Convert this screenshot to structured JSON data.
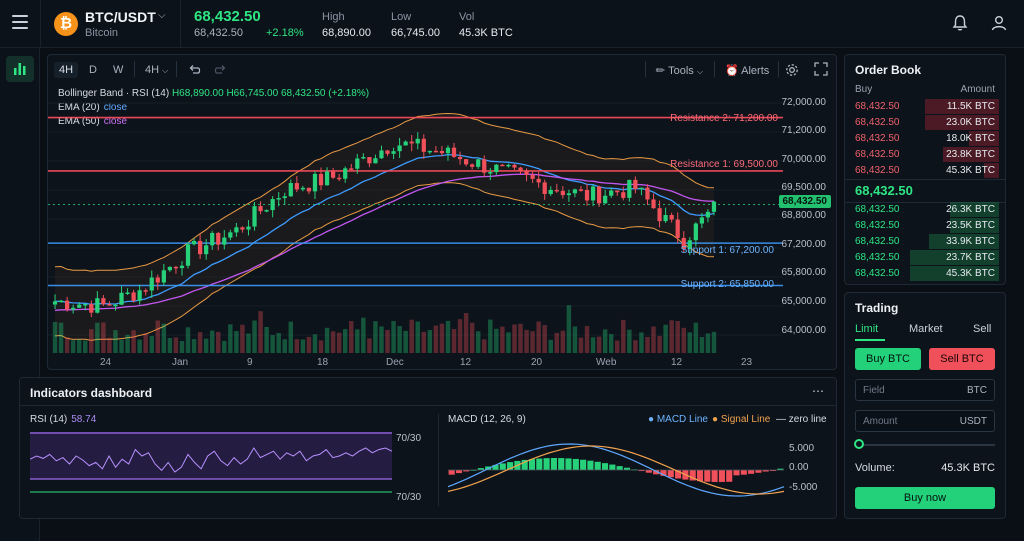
{
  "header": {
    "coin_symbol": "₿",
    "pair": "BTC/USDT",
    "pair_name": "Bitcoin",
    "last_price": "68,432.50",
    "last_price_sub": "68,432.50",
    "change": "+2.18%",
    "stats": [
      {
        "label": "High",
        "value": "68,890.00"
      },
      {
        "label": "Low",
        "value": "66,745.00"
      },
      {
        "label": "Vol",
        "value": "45.3K BTC"
      }
    ],
    "icons": [
      "menu-icon",
      "bell-icon",
      "user-icon"
    ]
  },
  "rail": {
    "icons": [
      "bar-chart-icon"
    ]
  },
  "chart": {
    "timeframes": [
      "4H",
      "D",
      "W"
    ],
    "interval": "4H",
    "tools_label": "Tools",
    "alerts_label": "Alerts",
    "indicator_line": {
      "prefix": "Bollinger Band · RSI (14)",
      "high": "H68,890.00",
      "low": "H66,745.00",
      "value": "68,432.50 (+2.18%)"
    },
    "ema20": {
      "label": "EMA (20)",
      "suffix": "close"
    },
    "ema50": {
      "label": "EMA (50)",
      "suffix": "close"
    },
    "current_price": "68,432.50",
    "levels": [
      {
        "label": "Resistance 2: 71,200.00",
        "value": 71200,
        "color": "#ff4d5e"
      },
      {
        "label": "Resistance 1: 69,500.00",
        "value": 69500,
        "color": "#ff4d5e"
      },
      {
        "label": "Support 1: 67,200.00",
        "value": 67200,
        "color": "#3d9bff"
      },
      {
        "label": "Support 2: 65,850.00",
        "value": 65850,
        "color": "#3d9bff"
      }
    ],
    "colors": {
      "up": "#26d17a",
      "down": "#f0505a",
      "bollinger": "#e89a44",
      "ema20": "#3d9bff",
      "ema50": "#c257f0"
    }
  },
  "chart_data": [
    {
      "type": "candlestick",
      "y_ticks": [
        "72,000.00",
        "71,200.00",
        "70,000.00",
        "69,500.00",
        "68,800.00",
        "67,200.00",
        "65,800.00",
        "65,000.00",
        "64,000.00"
      ],
      "x_ticks": [
        "24",
        "Jan",
        "9",
        "18",
        "Dec",
        "12",
        "20",
        "Web",
        "12",
        "23"
      ],
      "ylim": [
        63700,
        72300
      ],
      "candle_count": 110
    },
    {
      "type": "line",
      "title": "RSI (14)",
      "value": "58.74",
      "band_label_top": "70/30",
      "band_label_bottom": "70/30"
    },
    {
      "type": "bar",
      "title": "MACD (12, 26, 9)",
      "legend": [
        "MACD Line",
        "Signal Line",
        "zero line"
      ],
      "y_ticks": [
        "5.000",
        "0.00",
        "-5.000"
      ]
    }
  ],
  "indicators": {
    "title": "Indicators dashboard",
    "rsi_label": "RSI (14)",
    "rsi_value": "58.74",
    "rsi_band_top": "70/30",
    "rsi_band_bottom": "70/30",
    "macd_label": "MACD (12, 26, 9)",
    "macd_line": "MACD Line",
    "signal_line": "Signal Line",
    "zero_line": "zero line",
    "macd_ticks": [
      "5.000",
      "0.00",
      "-5.000"
    ]
  },
  "orderbook": {
    "title": "Order Book",
    "col_buy": "Buy",
    "col_amount": "Amount",
    "asks": [
      {
        "price": "68,432.50",
        "amount": "11.5K BTC",
        "depth": 0.5
      },
      {
        "price": "68,432.50",
        "amount": "23.0K BTC",
        "depth": 0.5
      },
      {
        "price": "68,432.50",
        "amount": "18.0K BTC",
        "depth": 0.2
      },
      {
        "price": "68,432.50",
        "amount": "23.8K BTC",
        "depth": 0.38
      },
      {
        "price": "68,432.50",
        "amount": "45.3K BTC",
        "depth": 0.1
      }
    ],
    "mid_price": "68,432.50",
    "bids": [
      {
        "price": "68,432.50",
        "amount": "26.3K BTC",
        "depth": 0.33
      },
      {
        "price": "68,432.50",
        "amount": "23.5K BTC",
        "depth": 0.33
      },
      {
        "price": "68,432.50",
        "amount": "33.9K BTC",
        "depth": 0.47
      },
      {
        "price": "68,432.50",
        "amount": "23.7K BTC",
        "depth": 0.6
      },
      {
        "price": "68,432.50",
        "amount": "45.3K BTC",
        "depth": 0.6
      }
    ]
  },
  "trading": {
    "title": "Trading",
    "tabs": [
      "Limit",
      "Market",
      "Sell"
    ],
    "buy_label": "Buy BTC",
    "sell_label": "Sell BTC",
    "field_placeholder": "Field",
    "field_unit": "BTC",
    "amount_placeholder": "Amount",
    "amount_unit": "USDT",
    "volume_label": "Volume:",
    "volume_value": "45.3K BTC",
    "buy_now_label": "Buy now"
  }
}
